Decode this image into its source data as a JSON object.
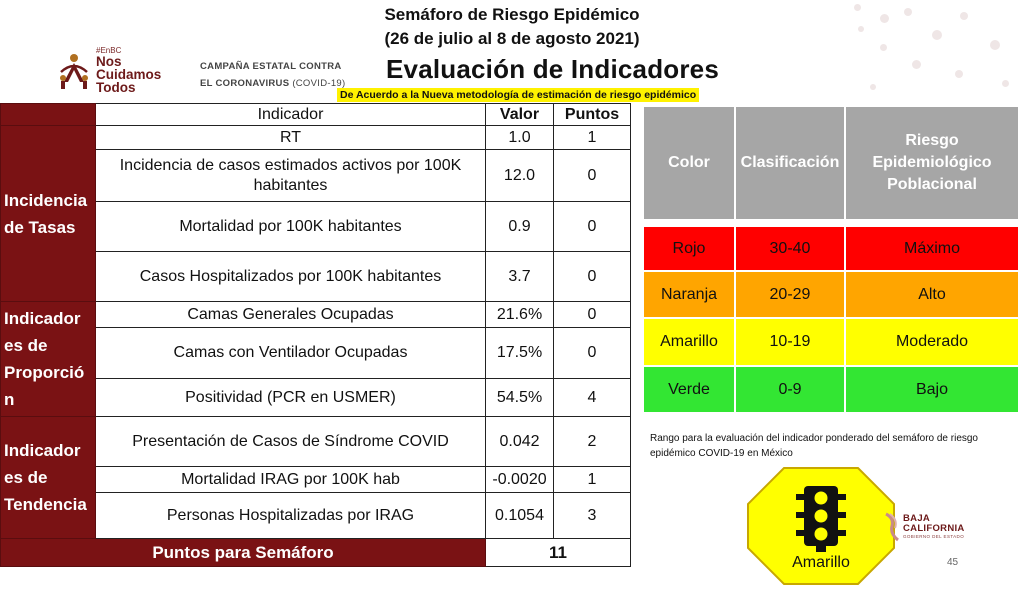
{
  "header": {
    "title_line1": "Semáforo de Riesgo Epidémico",
    "title_line2": "(26 de julio al 8 de agosto 2021)",
    "main_title": "Evaluación de Indicadores",
    "methodology_note": "De Acuerdo a la Nueva metodología de estimación de riesgo epidémico"
  },
  "logo": {
    "hashtag": "#EnBC",
    "line1": "Nos",
    "line2": "Cuidamos",
    "line3": "Todos"
  },
  "campaign": {
    "line1": "CAMPAÑA ESTATAL CONTRA",
    "line2_bold": "EL CORONAVIRUS",
    "line2_thin": "(COVID-19)"
  },
  "indicators_table": {
    "headers": {
      "indicator": "Indicador",
      "value": "Valor",
      "points": "Puntos"
    },
    "groups": {
      "tasas": "Incidencia de Tasas",
      "proporcion": "Indicador es de Proporció n",
      "tendencia": "Indicador es de Tendencia"
    },
    "rows": [
      {
        "indicator": "RT",
        "value": "1.0",
        "points": "1"
      },
      {
        "indicator": "Incidencia de casos estimados activos por 100K habitantes",
        "value": "12.0",
        "points": "0"
      },
      {
        "indicator": "Mortalidad por 100K habitantes",
        "value": "0.9",
        "points": "0"
      },
      {
        "indicator": "Casos Hospitalizados por 100K habitantes",
        "value": "3.7",
        "points": "0"
      },
      {
        "indicator": "Camas Generales Ocupadas",
        "value": "21.6%",
        "points": "0"
      },
      {
        "indicator": "Camas con Ventilador Ocupadas",
        "value": "17.5%",
        "points": "0"
      },
      {
        "indicator": "Positividad (PCR en USMER)",
        "value": "54.5%",
        "points": "4"
      },
      {
        "indicator": "Presentación de Casos de Síndrome COVID",
        "value": "0.042",
        "points": "2"
      },
      {
        "indicator": "Mortalidad IRAG por 100K hab",
        "value": "-0.0020",
        "points": "1"
      },
      {
        "indicator": "Personas Hospitalizadas por IRAG",
        "value": "0.1054",
        "points": "3"
      }
    ],
    "total": {
      "label": "Puntos para Semáforo",
      "value": "11"
    }
  },
  "legend_table": {
    "headers": {
      "color": "Color",
      "classification": "Clasificación",
      "risk": "Riesgo Epidemiológico Poblacional"
    },
    "rows": [
      {
        "color": "Rojo",
        "range": "30-40",
        "risk": "Máximo"
      },
      {
        "color": "Naranja",
        "range": "20-29",
        "risk": "Alto"
      },
      {
        "color": "Amarillo",
        "range": "10-19",
        "risk": "Moderado"
      },
      {
        "color": "Verde",
        "range": "0-9",
        "risk": "Bajo"
      }
    ],
    "colors": {
      "rojo": "#ff0000",
      "naranja": "#ffa500",
      "amarillo": "#ffff00",
      "verde": "#33e633"
    },
    "note": "Rango para la evaluación del indicador ponderado del semáforo de riesgo epidémico COVID-19 en México"
  },
  "semaforo": {
    "icon": "traffic-light-icon",
    "label": "Amarillo",
    "color": "#ffff00"
  },
  "bc_logo": {
    "line1": "BAJA",
    "line2": "CALIFORNIA",
    "sub": "GOBIERNO DEL ESTADO"
  },
  "page_number": "45",
  "accent_color": "#7a1214"
}
